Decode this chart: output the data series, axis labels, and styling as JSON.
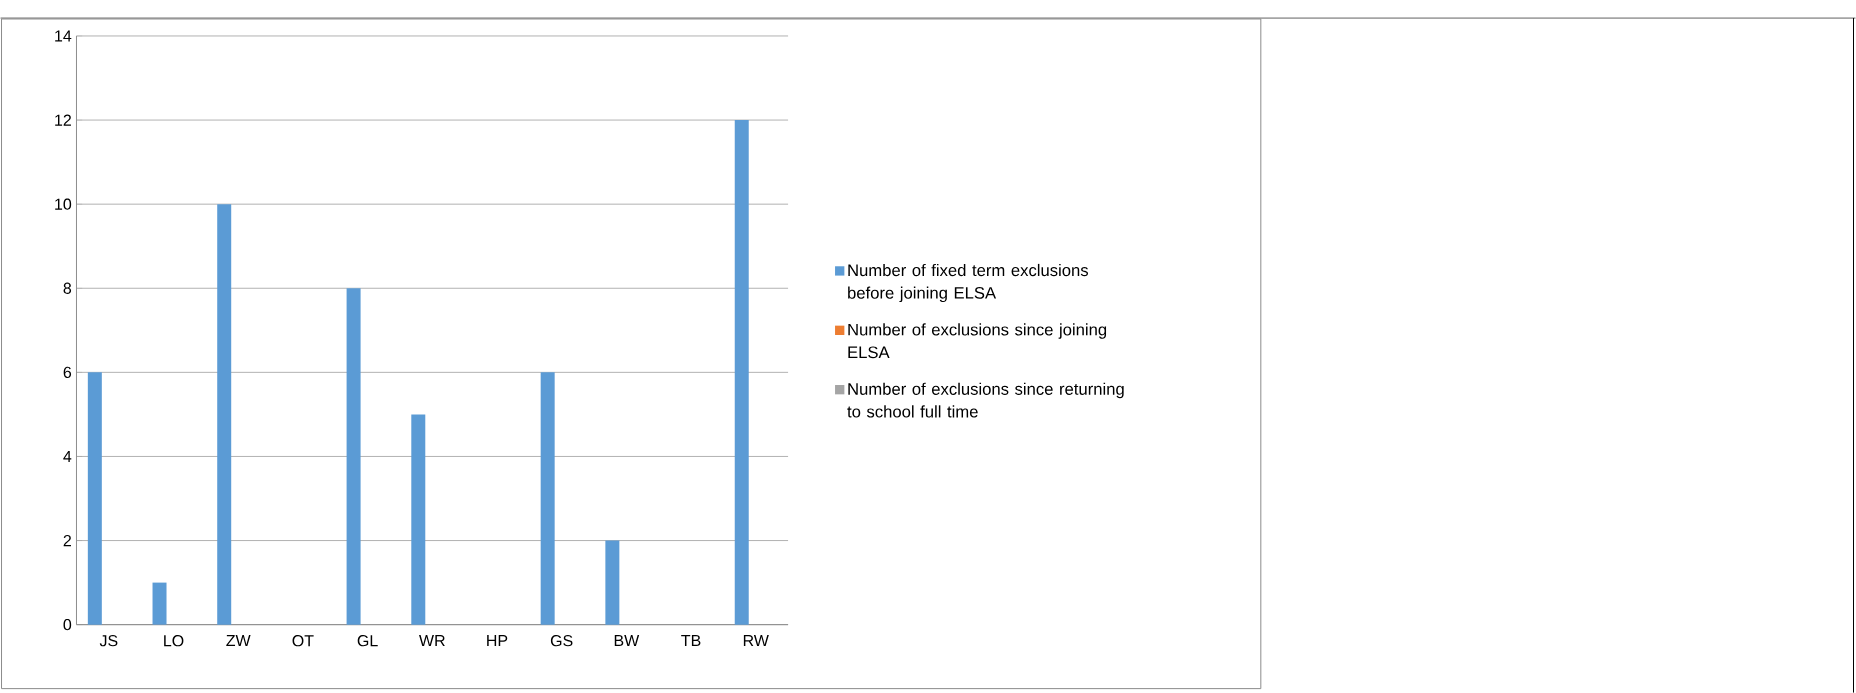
{
  "chart_data": {
    "type": "bar",
    "categories": [
      "JS",
      "LO",
      "ZW",
      "OT",
      "GL",
      "WR",
      "HP",
      "GS",
      "BW",
      "TB",
      "RW"
    ],
    "series": [
      {
        "name": "Number of fixed term exclusions before joining ELSA",
        "color": "#5b9bd5",
        "values": [
          6,
          1,
          10,
          0,
          8,
          5,
          0,
          6,
          2,
          0,
          12
        ]
      },
      {
        "name": "Number of  exclusions since joining ELSA",
        "color": "#ed7d31",
        "values": [
          0,
          0,
          0,
          0,
          0,
          0,
          0,
          0,
          0,
          0,
          0
        ]
      },
      {
        "name": "Number of exclusions since returning to school full time",
        "color": "#a5a5a5",
        "values": [
          0,
          0,
          0,
          0,
          0,
          0,
          0,
          0,
          0,
          0,
          0
        ]
      }
    ],
    "ylim": [
      0,
      14
    ],
    "yticks": [
      0,
      2,
      4,
      6,
      8,
      10,
      12,
      14
    ],
    "grid": "y",
    "legend": "right"
  }
}
